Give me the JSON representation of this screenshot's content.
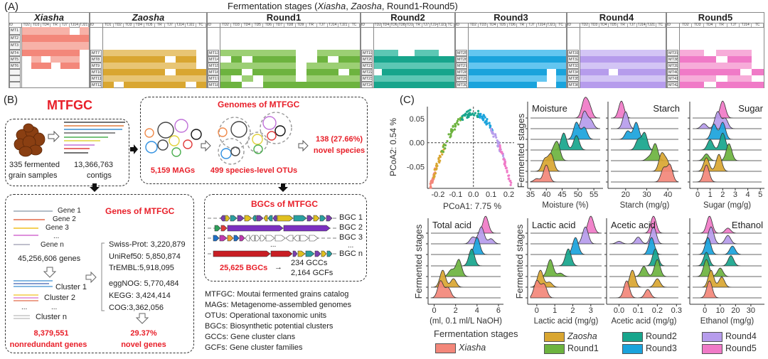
{
  "panelA": {
    "label": "(A)",
    "title_prefix": "Fermentation stages (",
    "title_xiasha": "Xiasha",
    "title_sep": ", ",
    "title_zaosha": "Zaosha",
    "title_suffix": ", Round1-Round5)",
    "id_header": "ID",
    "groups": [
      {
        "name": "Xiasha",
        "italic": true,
        "color_light": "#f7b2a8",
        "color_dark": "#f3877a",
        "columns": [
          "TD2",
          "TD3",
          "TD4",
          "TR",
          "TJ7",
          "TJ14",
          "TJ21"
        ],
        "rows": [
          {
            "id": "MT1",
            "presence": "1111101"
          },
          {
            "id": "MT2",
            "presence": "1111111"
          },
          {
            "id": "MT3",
            "presence": "1111111"
          },
          {
            "id": "MT4",
            "presence": "1111110"
          },
          {
            "id": "MT5",
            "presence": "0101110"
          },
          {
            "id": "MT6",
            "presence": "0110110"
          },
          {
            "id": "",
            "presence": "0000000"
          },
          {
            "id": "",
            "presence": "0000000"
          },
          {
            "id": "",
            "presence": "0000000"
          }
        ]
      },
      {
        "name": "Zaosha",
        "italic": true,
        "color_light": "#e8c574",
        "color_dark": "#d9a631",
        "columns": [
          "TD1",
          "TD2",
          "TD3",
          "TD4",
          "TD5",
          "TR",
          "TJ7",
          "TJ14",
          "TJ21",
          "TC"
        ],
        "rows": [
          {
            "id": "MT7",
            "presence": "1111111110"
          },
          {
            "id": "MT8",
            "presence": "1111110110"
          },
          {
            "id": "MT9",
            "presence": "1111111110"
          },
          {
            "id": "MT10",
            "presence": "1111110111"
          },
          {
            "id": "MT11",
            "presence": "1111111111"
          },
          {
            "id": "MT12",
            "presence": "1011111101"
          }
        ]
      },
      {
        "name": "Round1",
        "italic": false,
        "color_light": "#9ccf74",
        "color_dark": "#6db33f",
        "columns": [
          "TD2",
          "TD3",
          "TD4",
          "TD5",
          "TD6",
          "TD7",
          "TD8",
          "TD9",
          "TR",
          "TJ7",
          "TJ14",
          "TJ21",
          "TC"
        ],
        "rows": [
          {
            "id": "MT13",
            "presence": "1111111001111"
          },
          {
            "id": "MT14",
            "presence": "0101111001011"
          },
          {
            "id": "MT15",
            "presence": "1111111011111"
          },
          {
            "id": "MT16",
            "presence": "1101111011101"
          },
          {
            "id": "MT17",
            "presence": "1010111011111"
          },
          {
            "id": "MT18",
            "presence": "1100111111111"
          }
        ]
      },
      {
        "name": "Round2",
        "italic": false,
        "color_light": "#5cc7b4",
        "color_dark": "#17a58c",
        "columns": [
          "TD2",
          "TD4",
          "TD6",
          "TD8",
          "TD10",
          "TR",
          "TJ7",
          "TJ14",
          "TJ21",
          "TC"
        ],
        "rows": [
          {
            "id": "MT19",
            "presence": "1110011100"
          },
          {
            "id": "MT20",
            "presence": "1111111111"
          },
          {
            "id": "MT21",
            "presence": "1111111111"
          },
          {
            "id": "MT22",
            "presence": "0111111111"
          },
          {
            "id": "MT23",
            "presence": "1111111111"
          },
          {
            "id": "MT24",
            "presence": "1111111111"
          }
        ]
      },
      {
        "name": "Round3",
        "italic": false,
        "color_light": "#63c6f0",
        "color_dark": "#1aa3dc",
        "columns": [
          "TD2",
          "TD3",
          "TD4",
          "TD5",
          "TD6",
          "TR",
          "TJ7",
          "TJ14",
          "TJ21",
          "TC"
        ],
        "rows": [
          {
            "id": "MT25",
            "presence": "1111111111"
          },
          {
            "id": "MT26",
            "presence": "1111111111"
          },
          {
            "id": "MT27",
            "presence": "1111111111"
          },
          {
            "id": "MT28",
            "presence": "1111111101"
          },
          {
            "id": "MT29",
            "presence": "1111111101"
          },
          {
            "id": "MT30",
            "presence": "1111111001"
          }
        ]
      },
      {
        "name": "Round4",
        "italic": false,
        "color_light": "#d3c5f5",
        "color_dark": "#b69cec",
        "columns": [
          "TD2",
          "TD3",
          "TD4",
          "TD5",
          "TR",
          "TJ7",
          "TJ14",
          "TJ21",
          "TC"
        ],
        "rows": [
          {
            "id": "MT31",
            "presence": "111111111"
          },
          {
            "id": "MT32",
            "presence": "111111111"
          },
          {
            "id": "MT33",
            "presence": "111111111"
          },
          {
            "id": "MT34",
            "presence": "111011111"
          },
          {
            "id": "MT35",
            "presence": "111111111"
          },
          {
            "id": "MT36",
            "presence": "111111111"
          }
        ]
      },
      {
        "name": "Round5",
        "italic": false,
        "color_light": "#f7acd9",
        "color_dark": "#f07ac7",
        "columns": [
          "TD2",
          "TD3",
          "TD4",
          "TR",
          "TJ7",
          "TJ14",
          "TC"
        ],
        "rows": [
          {
            "id": "MT37",
            "presence": "1101110"
          },
          {
            "id": "MT38",
            "presence": "1110110"
          },
          {
            "id": "MT39",
            "presence": "1111110"
          },
          {
            "id": "MT40",
            "presence": "1111101"
          },
          {
            "id": "MT41",
            "presence": "1110110"
          },
          {
            "id": "MT42",
            "presence": "1101111"
          }
        ]
      }
    ]
  },
  "panelB": {
    "label": "(B)",
    "catalog_title": "MTFGC",
    "samples_line1": "335 fermented",
    "samples_line2": "grain samples",
    "contigs_line1": "13,366,763",
    "contigs_line2": "contigs",
    "genomes_title": "Genomes of MTFGC",
    "mags": "5,159 MAGs",
    "otus": "499 species-level OTUs",
    "novel_species_line1": "138 (27.66%)",
    "novel_species_line2": "novel species",
    "genes_title": "Genes of MTFGC",
    "gene_labels": [
      "Gene 1",
      "Gene 2",
      "Gene 3",
      "...",
      "Gene n"
    ],
    "total_genes": "45,256,606 genes",
    "cluster_labels": [
      "Cluster 1",
      "Cluster 2",
      "...",
      "...",
      "Cluster n"
    ],
    "nonredundant_line1": "8,379,551",
    "nonredundant_line2": "nonredundant genes",
    "databases": [
      "Swiss-Prot: 3,220,879",
      "UniRef50: 5,850,874",
      "TrEMBL:5,918,095",
      "eggNOG: 5,770,484",
      "KEGG: 3,424,414",
      "COG:3,362,056"
    ],
    "novel_genes_line1": "29.37%",
    "novel_genes_line2": "novel genes",
    "bgc_title": "BGCs of MTFGC",
    "bgc_labels": [
      "BGC 1",
      "BGC 2",
      "BGC 3",
      "BGC n"
    ],
    "bgc_ellipsis": "...",
    "bgc_count": "25,625 BGCs",
    "bgc_arrow": "→",
    "gccs": "234 GCCs",
    "gcfs": "2,164 GCFs",
    "glossary": [
      "MTFGC: Moutai fermented grains catalog",
      "MAGs: Metagenome-assembled genomes",
      "OTUs: Operational taxonomic units",
      "BGCs: Biosynthetic potential clusters",
      "GCCs: Gene cluster clans",
      "GCFs: Gene cluster families"
    ]
  },
  "panelC": {
    "label": "(C)",
    "stage_colors": {
      "Xiasha": "#f3877a",
      "Zaosha": "#d9a631",
      "Round1": "#6db33f",
      "Round2": "#17a58c",
      "Round3": "#1aa3dc",
      "Round4": "#b69cec",
      "Round5": "#f07ac7"
    },
    "legend": {
      "title": "Fermentation stages",
      "items": [
        "Xiasha",
        "Zaosha",
        "Round1",
        "Round2",
        "Round3",
        "Round4",
        "Round5"
      ]
    },
    "ridge_ylabel": "Fermented stages"
  },
  "chart_data": [
    {
      "type": "scatter",
      "xlabel": "PCoA1:  7.75 %",
      "ylabel": "PCoA2:  0.54 %",
      "xlim": [
        -0.26,
        0.23
      ],
      "ylim": [
        -0.095,
        0.075
      ],
      "xticks": [
        "-0.2",
        "-0.1",
        "0.0",
        "0.1",
        "0.2"
      ],
      "xtick_values": [
        -0.2,
        -0.1,
        0.0,
        0.1,
        0.2
      ],
      "yticks": [
        "0.05",
        "0.00",
        "-0.05"
      ],
      "ytick_values": [
        0.05,
        0.0,
        -0.05
      ],
      "reference_lines": {
        "x": 0,
        "y": 0
      },
      "stage_pcoa1_ranges": {
        "Xiasha": [
          -0.245,
          -0.215
        ],
        "Zaosha": [
          -0.225,
          -0.16
        ],
        "Round1": [
          -0.18,
          -0.06
        ],
        "Round2": [
          -0.07,
          0.04
        ],
        "Round3": [
          0.03,
          0.11
        ],
        "Round4": [
          0.1,
          0.18
        ],
        "Round5": [
          0.15,
          0.215
        ]
      }
    },
    {
      "type": "ridgeline",
      "title": "Moisture",
      "title_align": "left",
      "xlabel": "Moisture (%)",
      "xlim": [
        35,
        57
      ],
      "xticks": [
        "35",
        "40",
        "45",
        "50",
        "55"
      ],
      "xtick_values": [
        35,
        40,
        45,
        50,
        55
      ],
      "peaks": {
        "Xiasha": [
          [
            40,
            1
          ],
          [
            37,
            0.2
          ]
        ],
        "Zaosha": [
          [
            41.5,
            1
          ],
          [
            39.5,
            0.7
          ]
        ],
        "Round1": [
          [
            43.5,
            1
          ],
          [
            42,
            0.5
          ]
        ],
        "Round2": [
          [
            45.5,
            1
          ],
          [
            49.5,
            0.85
          ]
        ],
        "Round3": [
          [
            49.5,
            1
          ],
          [
            52,
            0.7
          ]
        ],
        "Round4": [
          [
            52,
            1
          ],
          [
            54,
            0.5
          ]
        ],
        "Round5": [
          [
            52,
            1
          ],
          [
            53.5,
            0.7
          ]
        ]
      }
    },
    {
      "type": "ridgeline",
      "title": "Starch",
      "title_align": "right",
      "xlabel": "Starch (mg/g)",
      "xlim": [
        13,
        45
      ],
      "xticks": [
        "20",
        "30",
        "40"
      ],
      "xtick_values": [
        20,
        30,
        40
      ],
      "peaks": {
        "Xiasha": [
          [
            38,
            0.8
          ],
          [
            41,
            1
          ]
        ],
        "Zaosha": [
          [
            37,
            1
          ],
          [
            39.5,
            0.6
          ]
        ],
        "Round1": [
          [
            34,
            1
          ],
          [
            31,
            0.2
          ]
        ],
        "Round2": [
          [
            29,
            1
          ],
          [
            26,
            0.6
          ]
        ],
        "Round3": [
          [
            25,
            1
          ],
          [
            21,
            0.5
          ]
        ],
        "Round4": [
          [
            20,
            1
          ]
        ],
        "Round5": [
          [
            18,
            1
          ]
        ]
      }
    },
    {
      "type": "ridgeline",
      "title": "Sugar",
      "title_align": "right",
      "xlabel": "Sugar (mg/g)",
      "xlim": [
        -0.4,
        5.1
      ],
      "xticks": [
        "0",
        "1",
        "2",
        "3",
        "4",
        "5"
      ],
      "xtick_values": [
        0,
        1,
        2,
        3,
        4,
        5
      ],
      "peaks": {
        "Xiasha": [
          [
            0.7,
            1
          ]
        ],
        "Zaosha": [
          [
            0.7,
            0.8
          ],
          [
            1.7,
            1
          ]
        ],
        "Round1": [
          [
            0.7,
            0.4
          ],
          [
            2.5,
            1
          ]
        ],
        "Round2": [
          [
            1,
            0.6
          ],
          [
            2,
            1
          ]
        ],
        "Round3": [
          [
            1.3,
            0.9
          ],
          [
            2,
            1
          ]
        ],
        "Round4": [
          [
            0.5,
            0.3
          ],
          [
            1.6,
            1
          ],
          [
            2.2,
            0.6
          ]
        ],
        "Round5": [
          [
            2,
            1
          ]
        ]
      }
    },
    {
      "type": "ridgeline",
      "title": "Total acid",
      "title_align": "left",
      "xlabel": "(ml, 0.1 ml/L NaOH)",
      "xlim": [
        -0.3,
        6.2
      ],
      "xticks": [
        "0",
        "2",
        "4",
        "6"
      ],
      "xtick_values": [
        0,
        2,
        4,
        6
      ],
      "peaks": {
        "Xiasha": [
          [
            0.6,
            1
          ],
          [
            1.3,
            0.6
          ]
        ],
        "Zaosha": [
          [
            0.8,
            1
          ],
          [
            1.8,
            0.5
          ]
        ],
        "Round1": [
          [
            2.3,
            1
          ],
          [
            1.6,
            0.4
          ]
        ],
        "Round2": [
          [
            3.5,
            1
          ]
        ],
        "Round3": [
          [
            4,
            1
          ]
        ],
        "Round4": [
          [
            4.4,
            1
          ],
          [
            3.6,
            0.4
          ],
          [
            5.3,
            0.3
          ]
        ],
        "Round5": [
          [
            4.8,
            1
          ]
        ]
      }
    },
    {
      "type": "ridgeline",
      "title": "Lactic acid",
      "title_align": "left",
      "xlabel": "Lactic acid (mg/g)",
      "xlim": [
        -0.35,
        3.6
      ],
      "xticks": [
        "0",
        "1",
        "2",
        "3"
      ],
      "xtick_values": [
        0,
        1,
        2,
        3
      ],
      "peaks": {
        "Xiasha": [
          [
            0,
            1
          ],
          [
            0.4,
            0.8
          ]
        ],
        "Zaosha": [
          [
            0.2,
            1
          ],
          [
            0.7,
            0.3
          ]
        ],
        "Round1": [
          [
            0.75,
            1
          ],
          [
            1.3,
            0.2
          ]
        ],
        "Round2": [
          [
            1.75,
            1
          ]
        ],
        "Round3": [
          [
            2.15,
            1
          ]
        ],
        "Round4": [
          [
            2.7,
            1
          ]
        ],
        "Round5": [
          [
            3,
            1
          ]
        ]
      }
    },
    {
      "type": "ridgeline",
      "title": "Acetic acid",
      "title_align": "left",
      "xlabel": "Acetic acid (mg/g)",
      "xlim": [
        -0.05,
        0.31
      ],
      "xticks": [
        "0.0",
        "0.1",
        "0.2",
        "0.3"
      ],
      "xtick_values": [
        0,
        0.1,
        0.2,
        0.3
      ],
      "peaks": {
        "Xiasha": [
          [
            0.04,
            1
          ],
          [
            0.15,
            0.5
          ]
        ],
        "Zaosha": [
          [
            0.07,
            1
          ],
          [
            0.2,
            0.5
          ]
        ],
        "Round1": [
          [
            0.2,
            1
          ],
          [
            0.13,
            0.6
          ]
        ],
        "Round2": [
          [
            0.19,
            1
          ]
        ],
        "Round3": [
          [
            0.17,
            1
          ]
        ],
        "Round4": [
          [
            0.18,
            1
          ],
          [
            0.1,
            0.4
          ],
          [
            0,
            0.15
          ]
        ],
        "Round5": [
          [
            0.18,
            1
          ]
        ]
      }
    },
    {
      "type": "ridgeline",
      "title": "Ethanol",
      "title_align": "right",
      "xlabel": "Ethanol (mg/g)",
      "xlim": [
        -8,
        37
      ],
      "xticks": [
        "0",
        "10",
        "20",
        "30"
      ],
      "xtick_values": [
        0,
        10,
        20,
        30
      ],
      "peaks": {
        "Xiasha": [
          [
            3,
            1
          ]
        ],
        "Zaosha": [
          [
            4,
            1
          ],
          [
            11,
            0.6
          ]
        ],
        "Round1": [
          [
            1,
            1
          ],
          [
            10,
            0.5
          ]
        ],
        "Round2": [
          [
            1,
            0.8
          ],
          [
            17,
            0.6
          ]
        ],
        "Round3": [
          [
            2,
            1
          ],
          [
            18,
            0.5
          ]
        ],
        "Round4": [
          [
            4,
            1
          ],
          [
            15,
            0.5
          ]
        ],
        "Round5": [
          [
            3,
            1
          ],
          [
            15,
            0.3
          ]
        ]
      }
    }
  ]
}
